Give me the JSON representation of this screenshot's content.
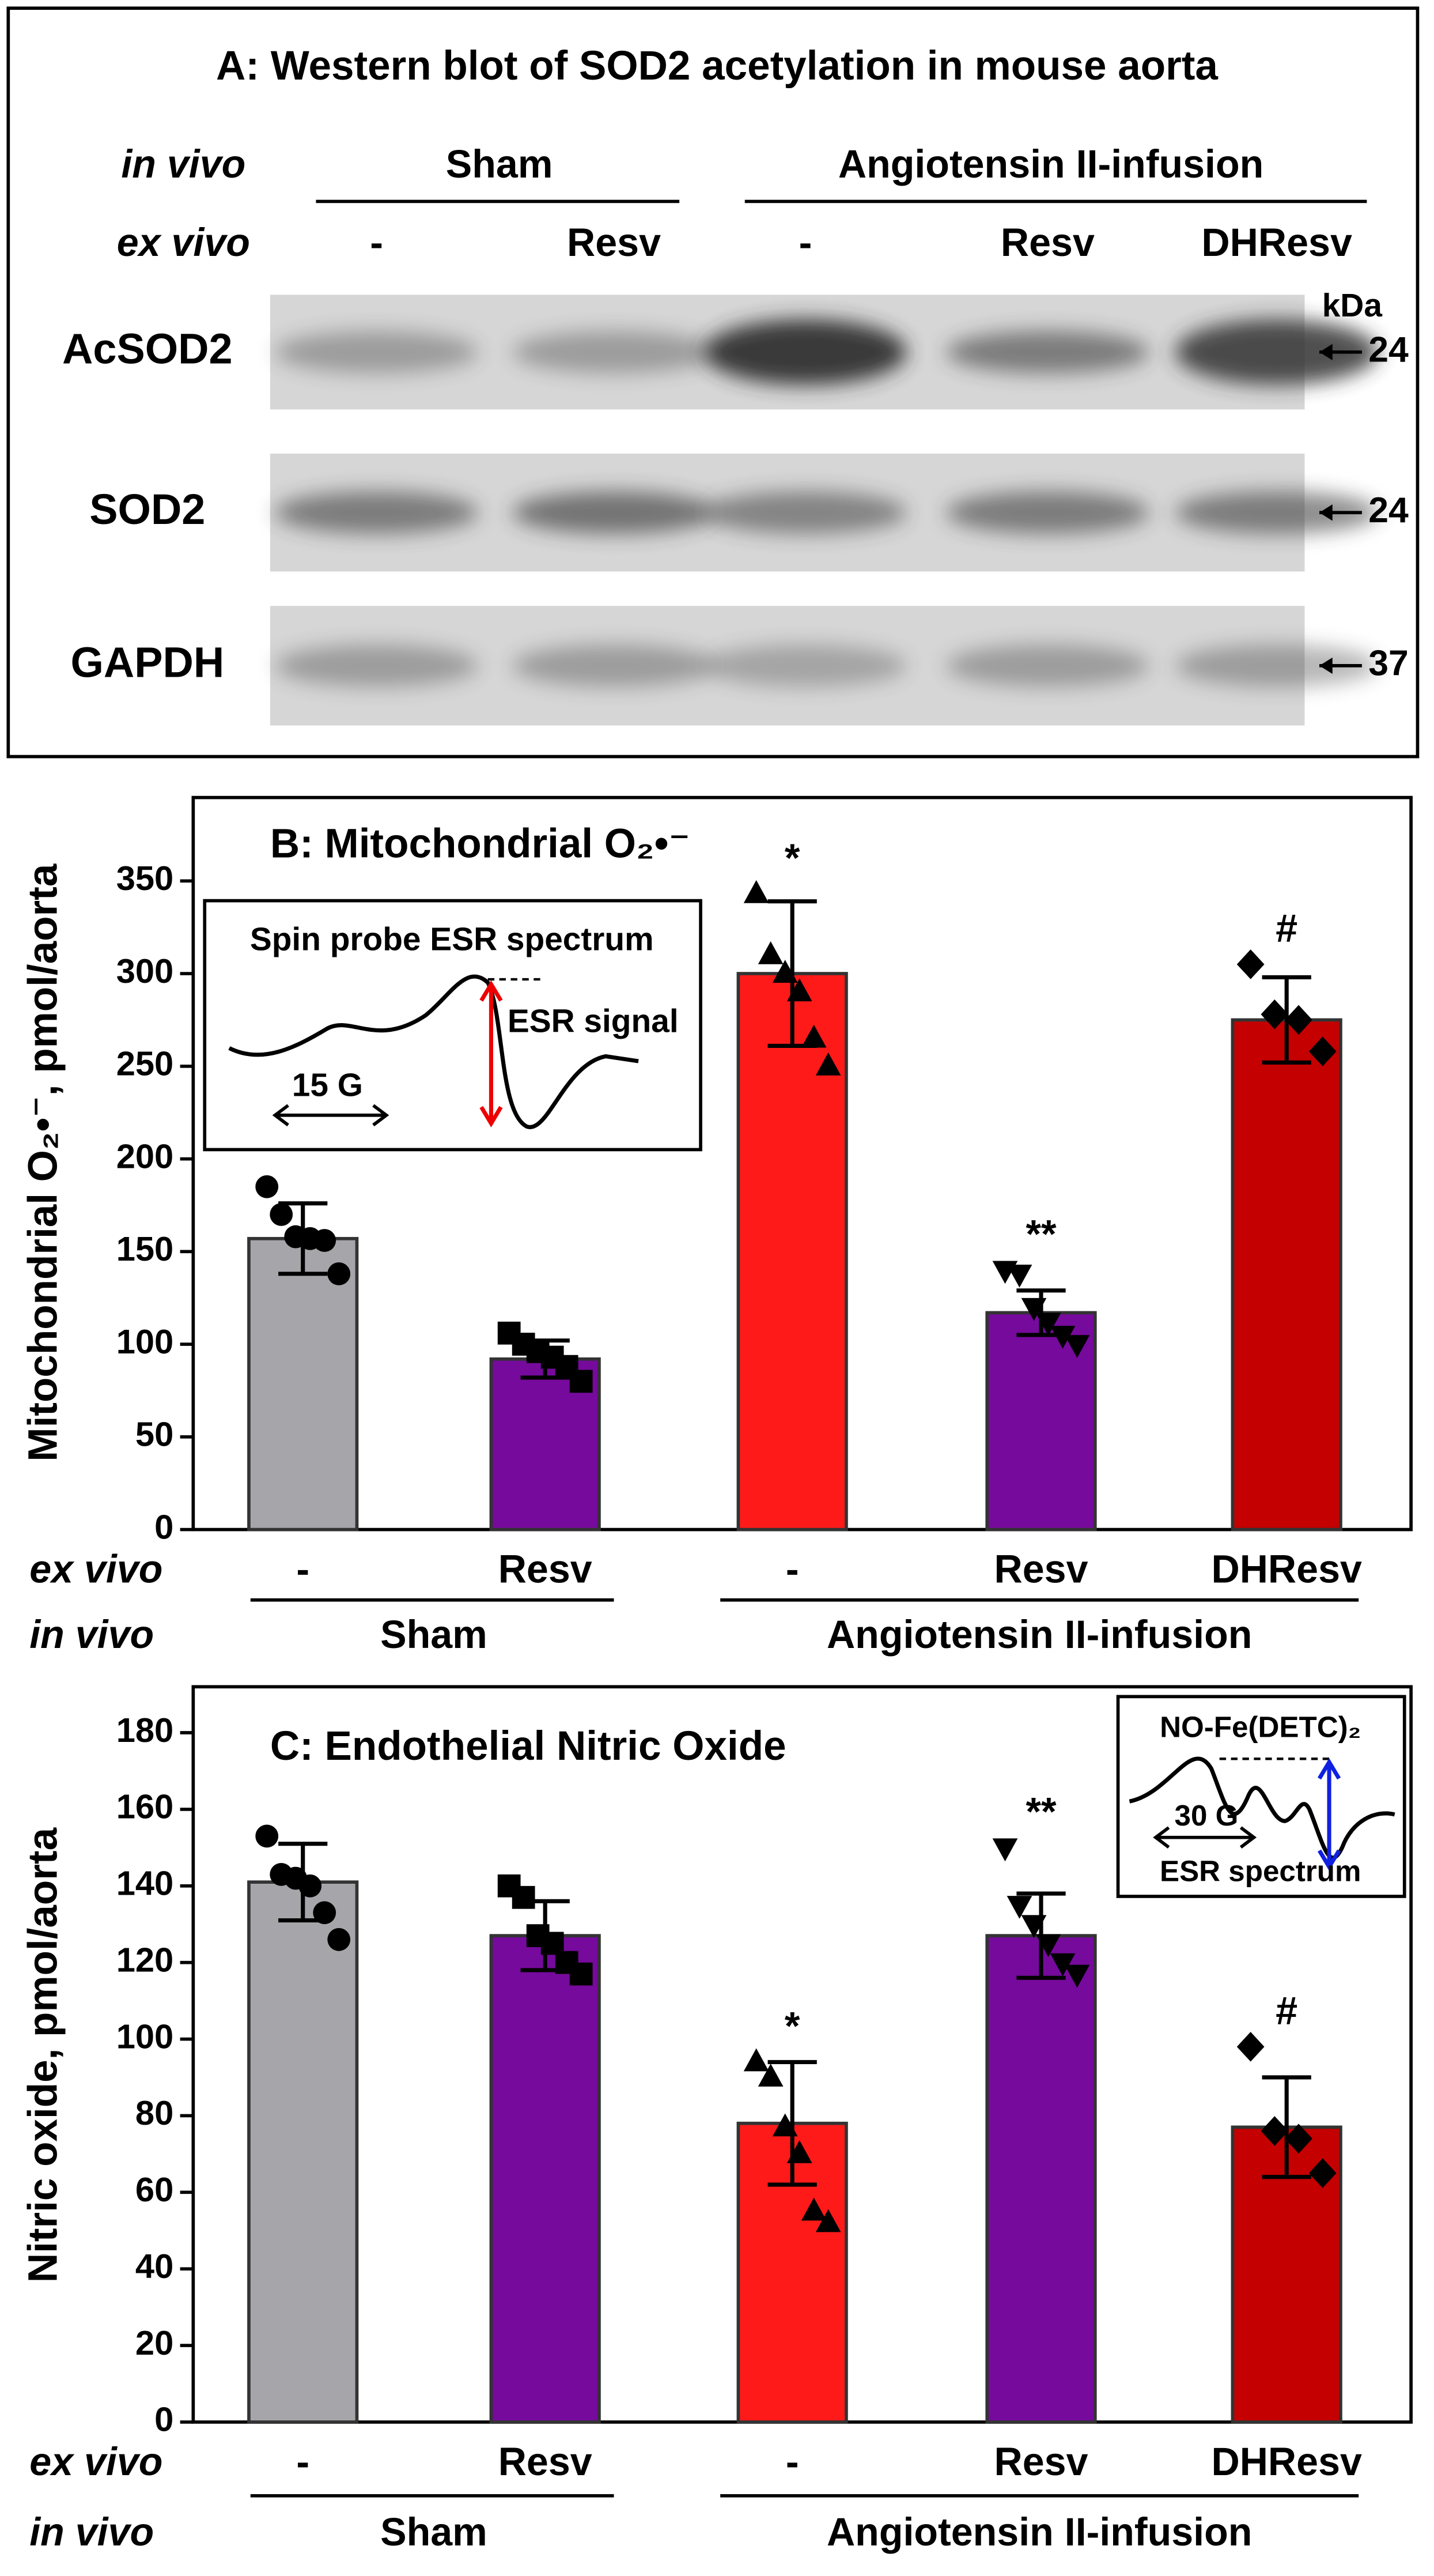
{
  "blot": {
    "title": "A: Western blot of SOD2 acetylation in mouse aorta",
    "in_vivo_label": "in vivo",
    "ex_vivo_label": "ex vivo",
    "groups": [
      "Sham",
      "Angiotensin II-infusion"
    ],
    "lanes": [
      "-",
      "Resv",
      "-",
      "Resv",
      "DHResv"
    ],
    "lane_colors": [
      "#000000",
      "#8b1fc0",
      "#000000",
      "#8b1fc0",
      "#000000"
    ],
    "unit": "kDa",
    "rows": [
      {
        "label": "AcSOD2",
        "marker": "24"
      },
      {
        "label": "SOD2",
        "marker": "24"
      },
      {
        "label": "GAPDH",
        "marker": "37"
      }
    ]
  },
  "chart_data": [
    {
      "type": "bar",
      "title": "B: Mitochondrial O₂•⁻",
      "y_label": "Mitochondrial O₂•⁻, pmol/aorta",
      "categories": [
        "-",
        "Resv",
        "-",
        "Resv",
        "DHResv"
      ],
      "category_colors": [
        "#000000",
        "#8b1fc0",
        "#000000",
        "#8b1fc0",
        "#000000"
      ],
      "row_labels": [
        "ex vivo",
        "in vivo"
      ],
      "groups": [
        "Sham",
        "Angiotensin II-infusion"
      ],
      "values": [
        157,
        92,
        300,
        117,
        275
      ],
      "errors": [
        19,
        10,
        39,
        12,
        23
      ],
      "colors": [
        "#a6a6aa",
        "#760a9c",
        "#ff1a1a",
        "#760a9c",
        "#c40000"
      ],
      "markers": [
        "circle",
        "square",
        "triangle-up",
        "triangle-down",
        "diamond"
      ],
      "points": [
        [
          185,
          170,
          158,
          157,
          156,
          138
        ],
        [
          106,
          100,
          96,
          93,
          88,
          80
        ],
        [
          343,
          310,
          300,
          290,
          265,
          250
        ],
        [
          140,
          138,
          120,
          112,
          105,
          100
        ],
        [
          305,
          278,
          275,
          258
        ]
      ],
      "annotations": [
        "",
        "",
        "*",
        "**",
        "#"
      ],
      "ylim": [
        0,
        395
      ],
      "yticks": [
        0,
        50,
        100,
        150,
        200,
        250,
        300,
        350
      ],
      "inset": {
        "title": "Spin probe ESR spectrum",
        "signal": "ESR signal",
        "scale": "15 G"
      }
    },
    {
      "type": "bar",
      "title": "C:  Endothelial Nitric Oxide",
      "y_label": "Nitric oxide, pmol/aorta",
      "categories": [
        "-",
        "Resv",
        "-",
        "Resv",
        "DHResv"
      ],
      "category_colors": [
        "#000000",
        "#8b1fc0",
        "#000000",
        "#8b1fc0",
        "#000000"
      ],
      "row_labels": [
        "ex vivo",
        "in vivo"
      ],
      "groups": [
        "Sham",
        "Angiotensin II-infusion"
      ],
      "values": [
        141,
        127,
        78,
        127,
        77
      ],
      "errors": [
        10,
        9,
        16,
        11,
        13
      ],
      "colors": [
        "#a6a6aa",
        "#760a9c",
        "#ff1a1a",
        "#760a9c",
        "#c40000"
      ],
      "markers": [
        "circle",
        "square",
        "triangle-up",
        "triangle-down",
        "diamond"
      ],
      "points": [
        [
          153,
          143,
          142,
          140,
          133,
          126
        ],
        [
          140,
          137,
          127,
          125,
          120,
          117
        ],
        [
          94,
          90,
          77,
          70,
          55,
          52
        ],
        [
          150,
          135,
          130,
          125,
          120,
          117
        ],
        [
          98,
          76,
          74,
          65
        ]
      ],
      "annotations": [
        "",
        "",
        "*",
        "**",
        "#"
      ],
      "ylim": [
        0,
        192
      ],
      "yticks": [
        0,
        20,
        40,
        60,
        80,
        100,
        120,
        140,
        160,
        180
      ],
      "inset": {
        "title": "NO-Fe(DETC)₂",
        "scale": "30 G",
        "signal": "ESR spectrum"
      }
    }
  ]
}
